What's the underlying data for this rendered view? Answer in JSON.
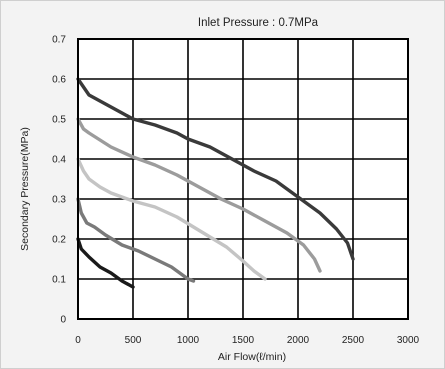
{
  "chart_data": {
    "type": "line",
    "title": "Inlet Pressure : 0.7MPa",
    "xlabel": "Air Flow(ℓ/min)",
    "ylabel": "Secondary Pressure(MPa)",
    "xlim": [
      0,
      3000
    ],
    "ylim": [
      0,
      0.7
    ],
    "x_ticks": [
      "0",
      "500",
      "1000",
      "1500",
      "2000",
      "2500",
      "3000"
    ],
    "y_ticks": [
      "0",
      "0.1",
      "0.2",
      "0.3",
      "0.4",
      "0.5",
      "0.6",
      "0.7"
    ],
    "grid": true,
    "series": [
      {
        "color": "#3a3a3a",
        "points": [
          [
            0,
            0.6
          ],
          [
            50,
            0.58
          ],
          [
            100,
            0.56
          ],
          [
            200,
            0.545
          ],
          [
            300,
            0.53
          ],
          [
            400,
            0.515
          ],
          [
            500,
            0.5
          ],
          [
            700,
            0.485
          ],
          [
            900,
            0.465
          ],
          [
            1000,
            0.45
          ],
          [
            1200,
            0.43
          ],
          [
            1400,
            0.4
          ],
          [
            1600,
            0.37
          ],
          [
            1800,
            0.345
          ],
          [
            2000,
            0.305
          ],
          [
            2200,
            0.265
          ],
          [
            2350,
            0.225
          ],
          [
            2450,
            0.19
          ],
          [
            2500,
            0.15
          ]
        ]
      },
      {
        "color": "#9c9c9c",
        "points": [
          [
            0,
            0.5
          ],
          [
            50,
            0.475
          ],
          [
            100,
            0.465
          ],
          [
            300,
            0.43
          ],
          [
            500,
            0.405
          ],
          [
            700,
            0.385
          ],
          [
            900,
            0.36
          ],
          [
            1100,
            0.33
          ],
          [
            1300,
            0.3
          ],
          [
            1500,
            0.275
          ],
          [
            1700,
            0.245
          ],
          [
            1900,
            0.215
          ],
          [
            2050,
            0.185
          ],
          [
            2150,
            0.15
          ],
          [
            2200,
            0.12
          ]
        ]
      },
      {
        "color": "#c4c4c4",
        "points": [
          [
            0,
            0.4
          ],
          [
            50,
            0.37
          ],
          [
            100,
            0.35
          ],
          [
            200,
            0.33
          ],
          [
            300,
            0.315
          ],
          [
            500,
            0.295
          ],
          [
            700,
            0.28
          ],
          [
            900,
            0.255
          ],
          [
            1050,
            0.23
          ],
          [
            1200,
            0.205
          ],
          [
            1350,
            0.18
          ],
          [
            1500,
            0.145
          ],
          [
            1600,
            0.12
          ],
          [
            1700,
            0.1
          ]
        ]
      },
      {
        "color": "#7a7a7a",
        "points": [
          [
            0,
            0.3
          ],
          [
            30,
            0.265
          ],
          [
            80,
            0.24
          ],
          [
            150,
            0.23
          ],
          [
            250,
            0.21
          ],
          [
            400,
            0.185
          ],
          [
            550,
            0.17
          ],
          [
            700,
            0.15
          ],
          [
            850,
            0.13
          ],
          [
            950,
            0.11
          ],
          [
            1000,
            0.1
          ],
          [
            1050,
            0.095
          ]
        ]
      },
      {
        "color": "#1a1a1a",
        "points": [
          [
            0,
            0.2
          ],
          [
            30,
            0.175
          ],
          [
            100,
            0.155
          ],
          [
            200,
            0.13
          ],
          [
            300,
            0.115
          ],
          [
            400,
            0.095
          ],
          [
            500,
            0.08
          ]
        ]
      }
    ]
  }
}
